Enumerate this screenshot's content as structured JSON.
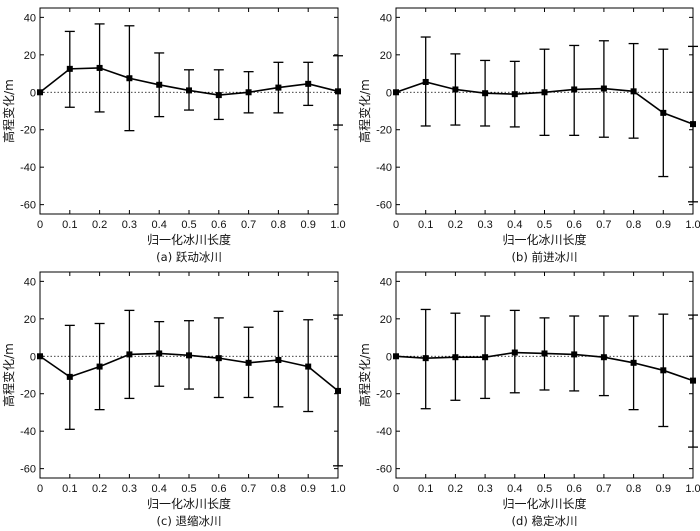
{
  "chart_data": [
    {
      "type": "line",
      "caption": "(a) 跃动冰川",
      "xlabel": "归一化冰川长度",
      "ylabel": "高程变化/m",
      "xlim": [
        0,
        1.0
      ],
      "ylim": [
        -65,
        45
      ],
      "xticks": [
        "0",
        "0.1",
        "0.2",
        "0.3",
        "0.4",
        "0.5",
        "0.6",
        "0.7",
        "0.8",
        "0.9",
        "1.0"
      ],
      "yticks": [
        "-60",
        "-40",
        "-20",
        "0",
        "20",
        "40"
      ],
      "zero_line": "dotted",
      "x": [
        0,
        0.1,
        0.2,
        0.3,
        0.4,
        0.5,
        0.6,
        0.7,
        0.8,
        0.9,
        1.0
      ],
      "values": [
        0,
        12.5,
        13,
        7.5,
        4,
        1,
        -1.5,
        0,
        2.5,
        4.5,
        0.5
      ],
      "err_upper": [
        0,
        32.5,
        36.5,
        35.5,
        21,
        12,
        12,
        11,
        16,
        16,
        19.5
      ],
      "err_lower": [
        0,
        -8,
        -10.5,
        -20.5,
        -13,
        -9.5,
        -14.5,
        -11,
        -11,
        -7,
        -17.5
      ]
    },
    {
      "type": "line",
      "caption": "(b) 前进冰川",
      "xlabel": "归一化冰川长度",
      "ylabel": "高程变化/m",
      "xlim": [
        0,
        1.0
      ],
      "ylim": [
        -65,
        45
      ],
      "xticks": [
        "0",
        "0.1",
        "0.2",
        "0.3",
        "0.4",
        "0.5",
        "0.6",
        "0.7",
        "0.8",
        "0.9",
        "1.0"
      ],
      "yticks": [
        "-60",
        "-40",
        "-20",
        "0",
        "20",
        "40"
      ],
      "zero_line": "dotted",
      "x": [
        0,
        0.1,
        0.2,
        0.3,
        0.4,
        0.5,
        0.6,
        0.7,
        0.8,
        0.9,
        1.0
      ],
      "values": [
        0,
        5.5,
        1.5,
        -0.5,
        -1,
        0,
        1.5,
        2,
        0.5,
        -11,
        -17
      ],
      "err_upper": [
        0,
        29.5,
        20.5,
        17,
        16.5,
        23,
        25,
        27.5,
        26,
        23,
        24.5
      ],
      "err_lower": [
        0,
        -18,
        -17.5,
        -18,
        -18.5,
        -23,
        -23,
        -24,
        -24.5,
        -45,
        -58.5
      ]
    },
    {
      "type": "line",
      "caption": "(c) 退缩冰川",
      "xlabel": "归一化冰川长度",
      "ylabel": "高程变化/m",
      "xlim": [
        0,
        1.0
      ],
      "ylim": [
        -65,
        45
      ],
      "xticks": [
        "0",
        "0.1",
        "0.2",
        "0.3",
        "0.4",
        "0.5",
        "0.6",
        "0.7",
        "0.8",
        "0.9",
        "1.0"
      ],
      "yticks": [
        "-60",
        "-40",
        "-20",
        "0",
        "20",
        "40"
      ],
      "zero_line": "dotted",
      "x": [
        0,
        0.1,
        0.2,
        0.3,
        0.4,
        0.5,
        0.6,
        0.7,
        0.8,
        0.9,
        1.0
      ],
      "values": [
        0,
        -11,
        -5.5,
        1,
        1.5,
        0.5,
        -1,
        -3.5,
        -2,
        -5.5,
        -18.5
      ],
      "err_upper": [
        0,
        16.5,
        17.5,
        24.5,
        18.5,
        19,
        20.5,
        15.5,
        24,
        19.5,
        22
      ],
      "err_lower": [
        0,
        -39,
        -28.5,
        -22.5,
        -16,
        -17.5,
        -22,
        -22,
        -27,
        -29.5,
        -58.5
      ]
    },
    {
      "type": "line",
      "caption": "(d) 稳定冰川",
      "xlabel": "归一化冰川长度",
      "ylabel": "高程变化/m",
      "xlim": [
        0,
        1.0
      ],
      "ylim": [
        -65,
        45
      ],
      "xticks": [
        "0",
        "0.1",
        "0.2",
        "0.3",
        "0.4",
        "0.5",
        "0.6",
        "0.7",
        "0.8",
        "0.9",
        "1.0"
      ],
      "yticks": [
        "-60",
        "-40",
        "-20",
        "0",
        "20",
        "40"
      ],
      "zero_line": "dotted",
      "x": [
        0,
        0.1,
        0.2,
        0.3,
        0.4,
        0.5,
        0.6,
        0.7,
        0.8,
        0.9,
        1.0
      ],
      "values": [
        0,
        -1,
        -0.5,
        -0.5,
        2,
        1.5,
        1,
        -0.5,
        -3.5,
        -7.5,
        -13
      ],
      "err_upper": [
        0,
        25,
        23,
        21.5,
        24.5,
        20.5,
        21.5,
        21.5,
        21.5,
        22.5,
        22
      ],
      "err_lower": [
        0,
        -28,
        -23.5,
        -22.5,
        -19.5,
        -18,
        -18.5,
        -21,
        -28.5,
        -37.5,
        -48.5
      ]
    }
  ]
}
